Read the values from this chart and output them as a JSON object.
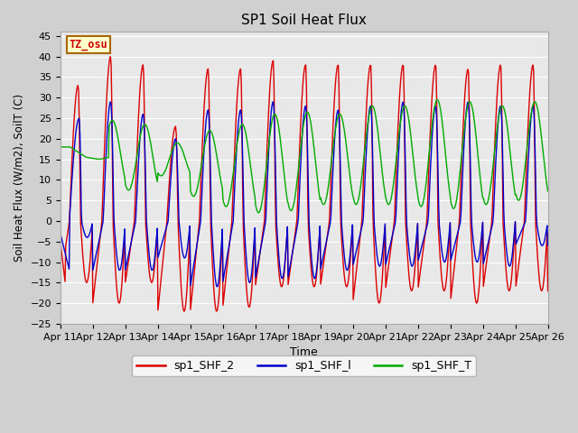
{
  "title": "SP1 Soil Heat Flux",
  "xlabel": "Time",
  "ylabel": "Soil Heat Flux (W/m2), SoilT (C)",
  "ylim": [
    -25,
    46
  ],
  "x_tick_labels": [
    "Apr 11",
    "Apr 12",
    "Apr 13",
    "Apr 14",
    "Apr 15",
    "Apr 16",
    "Apr 17",
    "Apr 18",
    "Apr 19",
    "Apr 20",
    "Apr 21",
    "Apr 22",
    "Apr 23",
    "Apr 24",
    "Apr 25",
    "Apr 26"
  ],
  "annotation_text": "TZ_osu",
  "annotation_color": "#cc0000",
  "annotation_bg": "#ffffcc",
  "annotation_border": "#aa6600",
  "colors": {
    "sp1_SHF_2": "#dd0000",
    "sp1_SHF_1": "#0000cc",
    "sp1_SHF_T": "#00aa00"
  },
  "legend_labels": [
    "sp1_SHF_2",
    "sp1_SHF_l",
    "sp1_SHF_T"
  ],
  "fig_bg": "#d0d0d0",
  "plot_bg": "#e8e8e8",
  "grid_color": "#ffffff",
  "linewidth": 1.0,
  "yticks": [
    -25,
    -20,
    -15,
    -10,
    -5,
    0,
    5,
    10,
    15,
    20,
    25,
    30,
    35,
    40,
    45
  ]
}
